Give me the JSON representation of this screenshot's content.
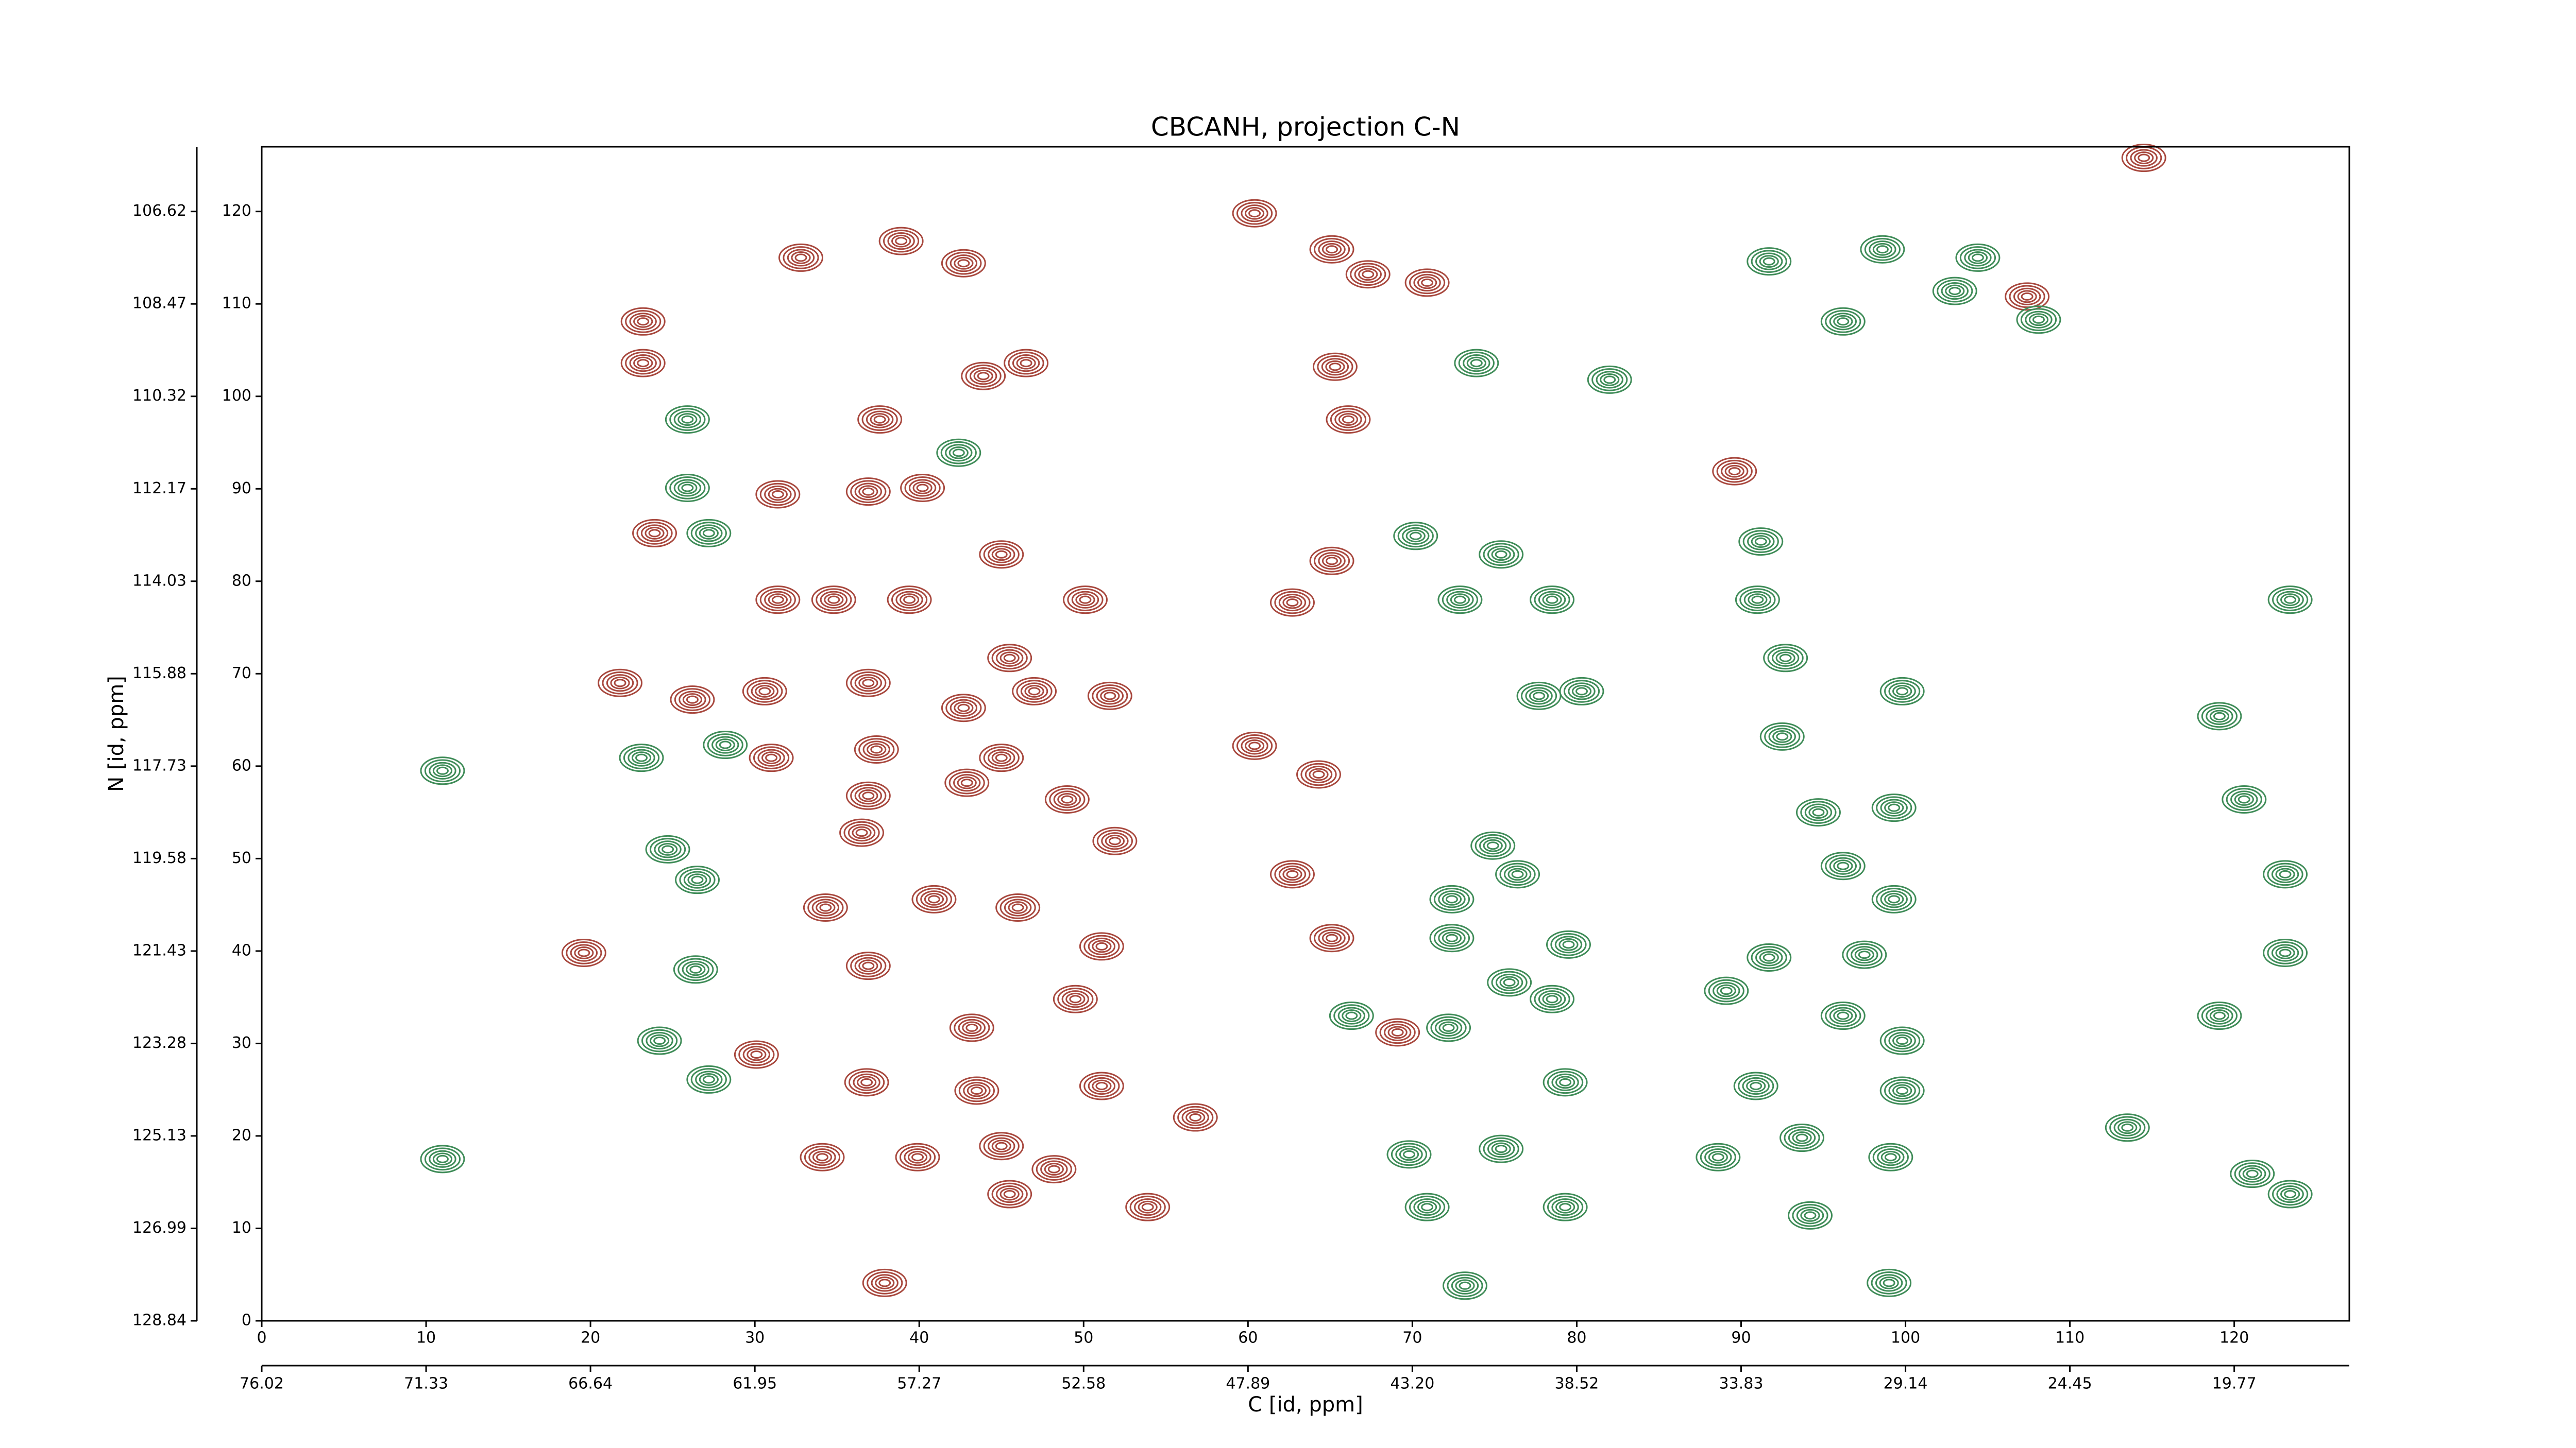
{
  "chart_data": {
    "type": "contour",
    "title": "CBCANH, projection C-N",
    "xlabel": "C [id, ppm]",
    "ylabel": "N [id, ppm]",
    "xlim": [
      0,
      127
    ],
    "ylim": [
      0,
      127
    ],
    "xticks": [
      0,
      10,
      20,
      30,
      40,
      50,
      60,
      70,
      80,
      90,
      100,
      110,
      120
    ],
    "yticks": [
      0,
      10,
      20,
      30,
      40,
      50,
      60,
      70,
      80,
      90,
      100,
      110,
      120
    ],
    "x2ticks": [
      {
        "value": 0,
        "label": "76.02"
      },
      {
        "value": 10,
        "label": "71.33"
      },
      {
        "value": 20,
        "label": "66.64"
      },
      {
        "value": 30,
        "label": "61.95"
      },
      {
        "value": 40,
        "label": "57.27"
      },
      {
        "value": 50,
        "label": "52.58"
      },
      {
        "value": 60,
        "label": "47.89"
      },
      {
        "value": 70,
        "label": "43.20"
      },
      {
        "value": 80,
        "label": "38.52"
      },
      {
        "value": 90,
        "label": "33.83"
      },
      {
        "value": 100,
        "label": "29.14"
      },
      {
        "value": 110,
        "label": "24.45"
      },
      {
        "value": 120,
        "label": "19.77"
      }
    ],
    "y2ticks": [
      {
        "value": 0,
        "label": "128.84"
      },
      {
        "value": 10,
        "label": "126.99"
      },
      {
        "value": 20,
        "label": "125.13"
      },
      {
        "value": 30,
        "label": "123.28"
      },
      {
        "value": 40,
        "label": "121.43"
      },
      {
        "value": 50,
        "label": "119.58"
      },
      {
        "value": 60,
        "label": "117.73"
      },
      {
        "value": 70,
        "label": "115.88"
      },
      {
        "value": 80,
        "label": "114.03"
      },
      {
        "value": 90,
        "label": "112.17"
      },
      {
        "value": 100,
        "label": "110.32"
      },
      {
        "value": 110,
        "label": "108.47"
      },
      {
        "value": 120,
        "label": "106.62"
      }
    ],
    "series": [
      {
        "color": "#a8483e",
        "x": [
          23.2,
          23.2,
          23.9,
          32.8,
          31.4,
          36.9,
          40.2,
          46.5,
          43.9,
          37.6,
          65.3,
          66.1,
          65.1,
          60.4,
          70.9,
          67.3,
          38.9,
          42.7,
          65.1,
          62.7,
          34.8,
          39.4,
          31.4,
          45.0,
          50.1,
          45.5,
          47.0,
          51.6,
          42.7,
          36.9,
          30.6,
          21.8,
          26.2,
          31.0,
          37.4,
          45.0,
          60.4,
          64.3,
          36.9,
          42.9,
          49.0,
          36.5,
          51.9,
          62.7,
          34.3,
          40.9,
          46.0,
          36.9,
          51.1,
          19.6,
          65.1,
          43.2,
          49.5,
          30.1,
          69.1,
          36.8,
          43.5,
          51.1,
          56.8,
          34.1,
          39.9,
          45.0,
          48.2,
          45.5,
          53.9,
          37.9,
          107.4,
          89.6,
          114.5
        ],
        "y": [
          103.6,
          108.1,
          85.2,
          115.0,
          89.4,
          89.7,
          90.1,
          103.6,
          102.2,
          97.5,
          103.2,
          97.5,
          115.9,
          119.8,
          112.3,
          113.2,
          116.8,
          114.4,
          82.2,
          77.7,
          78.0,
          78.0,
          78.0,
          82.9,
          78.0,
          71.7,
          68.1,
          67.6,
          66.3,
          69.0,
          68.1,
          69.0,
          67.2,
          60.9,
          61.8,
          60.9,
          62.2,
          59.1,
          56.8,
          58.2,
          56.4,
          52.8,
          51.9,
          48.3,
          44.7,
          45.6,
          44.7,
          38.4,
          40.5,
          39.8,
          41.4,
          31.7,
          34.8,
          28.8,
          31.2,
          25.8,
          24.9,
          25.4,
          22.0,
          17.7,
          17.7,
          18.9,
          16.4,
          13.7,
          12.3,
          4.1,
          110.8,
          91.9,
          125.8
        ]
      },
      {
        "color": "#3f8c58",
        "x": [
          25.9,
          25.9,
          27.2,
          23.1,
          28.2,
          24.7,
          26.5,
          26.4,
          11.0,
          24.2,
          27.2,
          11.0,
          42.4,
          73.9,
          82.0,
          75.4,
          70.2,
          72.9,
          78.5,
          77.7,
          80.3,
          74.9,
          76.4,
          72.4,
          72.4,
          79.5,
          75.9,
          78.5,
          66.3,
          72.2,
          79.3,
          69.8,
          75.4,
          70.9,
          79.3,
          73.2,
          91.7,
          98.6,
          104.4,
          103.0,
          108.1,
          96.2,
          91.2,
          91.0,
          92.7,
          99.8,
          92.5,
          94.7,
          99.3,
          96.2,
          99.3,
          91.7,
          97.5,
          89.1,
          96.2,
          99.8,
          90.9,
          99.8,
          93.7,
          88.6,
          99.1,
          94.2,
          99.0,
          120.6,
          123.1,
          123.1,
          119.1,
          113.5,
          121.1,
          123.4,
          123.4,
          119.1
        ],
        "y": [
          97.5,
          90.1,
          85.2,
          60.9,
          62.3,
          51.0,
          47.7,
          38.0,
          59.5,
          30.3,
          26.1,
          17.5,
          93.9,
          103.6,
          101.8,
          82.9,
          84.9,
          78.0,
          78.0,
          67.6,
          68.1,
          51.4,
          48.3,
          45.6,
          41.4,
          40.7,
          36.6,
          34.8,
          33.0,
          31.7,
          25.8,
          18.0,
          18.6,
          12.3,
          12.3,
          3.8,
          114.6,
          115.9,
          115.0,
          111.4,
          108.3,
          108.1,
          84.3,
          78.0,
          71.7,
          68.1,
          63.2,
          55.0,
          55.5,
          49.2,
          45.6,
          39.3,
          39.6,
          35.7,
          33.0,
          30.3,
          25.4,
          24.9,
          19.8,
          17.7,
          17.7,
          11.4,
          4.1,
          56.4,
          48.3,
          39.8,
          33.0,
          20.9,
          15.9,
          13.7,
          78.0,
          65.4
        ]
      }
    ]
  }
}
